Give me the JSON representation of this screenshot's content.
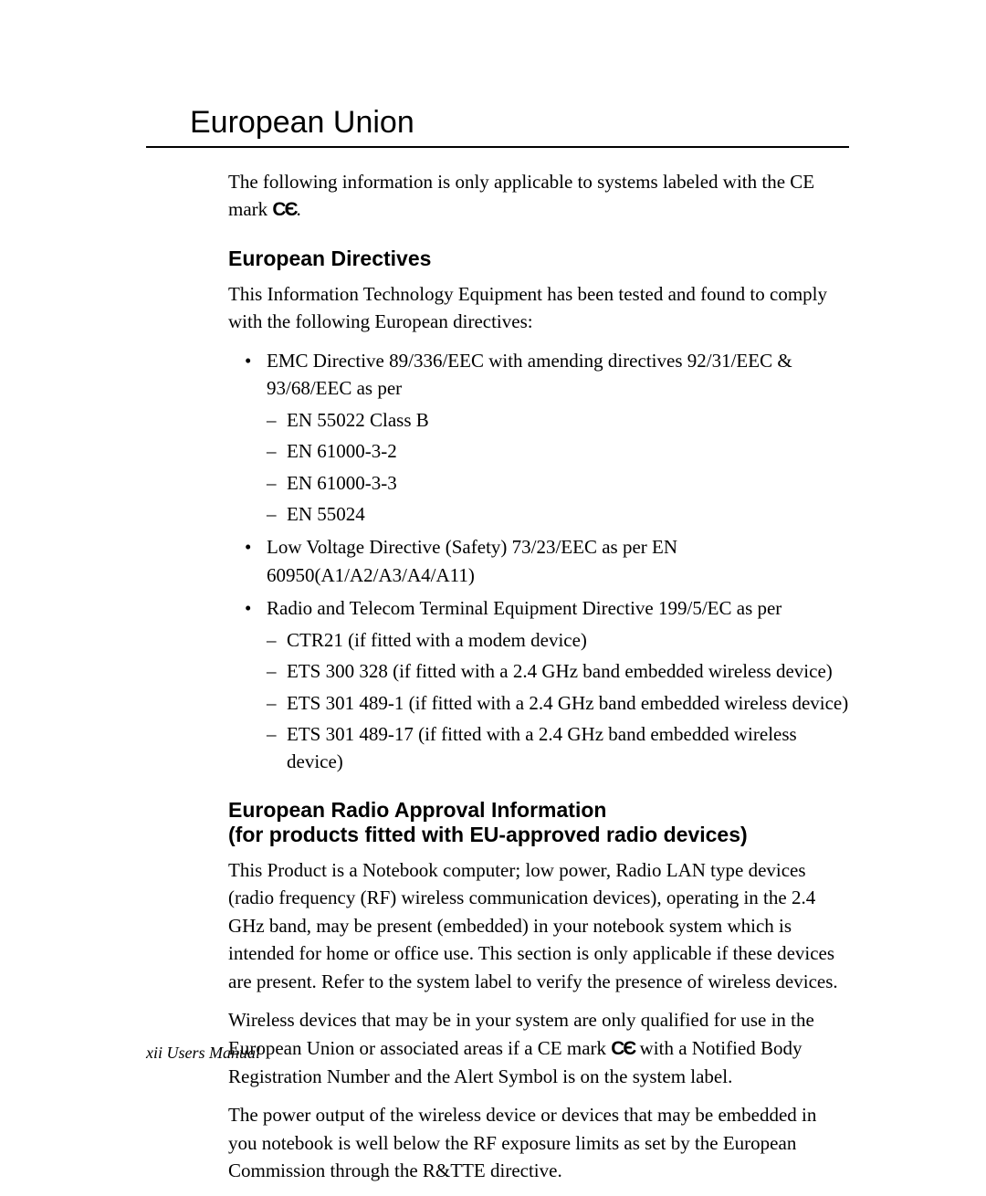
{
  "title": "European Union",
  "intro_prefix": "The following information is only applicable to systems labeled with the CE mark ",
  "ce_mark": "CЄ",
  "intro_suffix": ".",
  "section1": {
    "heading": "European Directives",
    "para": "This Information Technology Equipment has been tested and found to comply with the following European directives:",
    "bullets": [
      {
        "text": "EMC Directive 89/336/EEC with amending directives 92/31/EEC & 93/68/EEC as per",
        "subs": [
          "EN 55022 Class B",
          "EN 61000-3-2",
          "EN 61000-3-3",
          "EN 55024"
        ]
      },
      {
        "text": "Low Voltage Directive (Safety) 73/23/EEC as per EN 60950(A1/A2/A3/A4/A11)",
        "subs": []
      },
      {
        "text": "Radio and Telecom Terminal Equipment Directive 199/5/EC as per",
        "subs": [
          "CTR21 (if fitted with a modem device)",
          "ETS 300 328 (if fitted with a 2.4 GHz band embedded wireless device)",
          "ETS 301 489-1 (if fitted with a 2.4 GHz band embedded wireless device)",
          "ETS 301 489-17 (if fitted with a 2.4 GHz band embedded wireless device)"
        ]
      }
    ]
  },
  "section2": {
    "heading_line1": "European Radio Approval Information",
    "heading_line2": "(for products fitted with EU-approved radio devices)",
    "para1": "This Product is a Notebook computer; low power, Radio LAN type devices (radio frequency (RF) wireless communication devices), operating in the 2.4 GHz band, may be present (embedded) in your notebook system which is intended for home or office use. This section is only applicable if these devices are present. Refer to the system label to verify the presence of wireless devices.",
    "para2_a": "Wireless devices that may be in your system are only qualified for use in the European Union or associated areas if a CE mark ",
    "para2_b": " with a Notified Body Registration Number and the Alert Symbol is on the system label.",
    "para3": "The power output of the wireless device or devices that may be embedded in you notebook is well below the RF exposure limits as set by the European Commission through the R&TTE directive."
  },
  "footer": "xii  Users Manual"
}
